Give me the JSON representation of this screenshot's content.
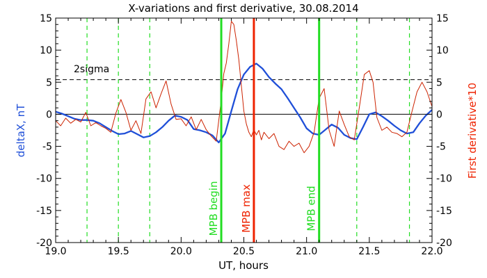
{
  "chart_data": {
    "type": "line",
    "title": "X-variations and first derivative, 30.08.2014",
    "xlabel": "UT, hours",
    "ylabel_left": "deltaX, nT",
    "ylabel_right": "First derivative*10",
    "xlim": [
      19.0,
      22.0
    ],
    "ylim": [
      -20,
      15
    ],
    "xticks": [
      "19.0",
      "19.5",
      "20.0",
      "20.5",
      "21.0",
      "21.5",
      "22.0"
    ],
    "yticks": [
      "15",
      "10",
      "5",
      "0",
      "-5",
      "-10",
      "-15",
      "-20"
    ],
    "colors": {
      "deltaX": "#1f4fd8",
      "derivative": "#cc2200",
      "green": "#22dd22",
      "red_marker": "#ee2200"
    },
    "sigma_label": "2sigma",
    "sigma_level": 5.4,
    "zero_level": 0,
    "green_dashed_lines": [
      19.25,
      19.5,
      19.75,
      21.4,
      21.82
    ],
    "markers": [
      {
        "x": 20.32,
        "label": "MPB begin",
        "kind": "green"
      },
      {
        "x": 20.58,
        "label": "MPB max",
        "kind": "red"
      },
      {
        "x": 21.1,
        "label": "MPB end",
        "kind": "green"
      }
    ],
    "series": [
      {
        "key": "deltaX",
        "x": [
          19.0,
          19.05,
          19.1,
          19.15,
          19.2,
          19.25,
          19.3,
          19.35,
          19.4,
          19.45,
          19.5,
          19.55,
          19.6,
          19.65,
          19.7,
          19.75,
          19.8,
          19.85,
          19.9,
          19.95,
          20.0,
          20.05,
          20.1,
          20.15,
          20.2,
          20.25,
          20.3,
          20.35,
          20.4,
          20.45,
          20.5,
          20.55,
          20.6,
          20.65,
          20.7,
          20.75,
          20.8,
          20.85,
          20.9,
          20.95,
          21.0,
          21.05,
          21.1,
          21.15,
          21.2,
          21.25,
          21.3,
          21.35,
          21.4,
          21.45,
          21.5,
          21.55,
          21.6,
          21.65,
          21.7,
          21.75,
          21.8,
          21.85,
          21.9,
          21.95,
          22.0
        ],
        "values": [
          0.4,
          0.1,
          -0.3,
          -0.7,
          -0.9,
          -0.9,
          -1.0,
          -1.4,
          -2.0,
          -2.6,
          -3.1,
          -3.0,
          -2.6,
          -3.1,
          -3.6,
          -3.4,
          -2.8,
          -2.0,
          -1.0,
          -0.2,
          -0.4,
          -0.9,
          -2.3,
          -2.5,
          -2.8,
          -3.3,
          -4.4,
          -3.0,
          0.5,
          3.9,
          6.2,
          7.4,
          7.9,
          7.1,
          5.8,
          4.8,
          3.9,
          2.5,
          1.0,
          -0.5,
          -2.2,
          -3.0,
          -3.2,
          -2.4,
          -1.6,
          -2.1,
          -3.2,
          -3.7,
          -3.9,
          -2.0,
          0.0,
          0.3,
          -0.3,
          -1.0,
          -1.8,
          -2.5,
          -3.0,
          -2.8,
          -1.4,
          -0.2,
          0.7
        ]
      },
      {
        "key": "derivative",
        "x": [
          19.0,
          19.04,
          19.08,
          19.12,
          19.16,
          19.2,
          19.24,
          19.28,
          19.32,
          19.36,
          19.4,
          19.44,
          19.48,
          19.52,
          19.56,
          19.6,
          19.64,
          19.68,
          19.72,
          19.76,
          19.8,
          19.84,
          19.88,
          19.92,
          19.96,
          20.0,
          20.04,
          20.08,
          20.12,
          20.16,
          20.2,
          20.24,
          20.28,
          20.32,
          20.34,
          20.36,
          20.38,
          20.4,
          20.42,
          20.44,
          20.46,
          20.48,
          20.5,
          20.52,
          20.54,
          20.56,
          20.58,
          20.6,
          20.62,
          20.64,
          20.66,
          20.7,
          20.74,
          20.78,
          20.82,
          20.86,
          20.9,
          20.94,
          20.98,
          21.02,
          21.06,
          21.1,
          21.14,
          21.18,
          21.22,
          21.26,
          21.3,
          21.34,
          21.38,
          21.42,
          21.46,
          21.5,
          21.53,
          21.56,
          21.6,
          21.64,
          21.68,
          21.72,
          21.76,
          21.8,
          21.84,
          21.88,
          21.92,
          21.96,
          22.0
        ],
        "values": [
          -1.0,
          -1.8,
          -0.6,
          -1.4,
          -0.8,
          -1.2,
          0.3,
          -1.8,
          -1.3,
          -1.8,
          -2.2,
          -2.8,
          0.2,
          2.3,
          0.3,
          -2.5,
          -1.0,
          -3.0,
          2.4,
          3.5,
          1.0,
          3.2,
          5.2,
          1.6,
          -0.8,
          -0.7,
          -1.8,
          -0.4,
          -2.4,
          -0.8,
          -2.4,
          -3.4,
          -4.2,
          2.2,
          6.3,
          8.0,
          11.0,
          14.5,
          14.0,
          11.5,
          8.5,
          4.5,
          0.5,
          -1.5,
          -2.8,
          -3.5,
          -2.4,
          -3.2,
          -2.5,
          -4.0,
          -2.8,
          -3.8,
          -3.0,
          -5.0,
          -5.5,
          -4.2,
          -5.0,
          -4.5,
          -6.0,
          -5.0,
          -2.8,
          2.5,
          4.0,
          -2.5,
          -5.0,
          0.5,
          -1.6,
          -3.5,
          -4.0,
          1.0,
          6.2,
          6.8,
          5.0,
          -0.5,
          -2.5,
          -2.0,
          -2.8,
          -3.0,
          -3.5,
          -2.8,
          0.4,
          3.5,
          5.0,
          3.5,
          1.2
        ]
      }
    ]
  }
}
